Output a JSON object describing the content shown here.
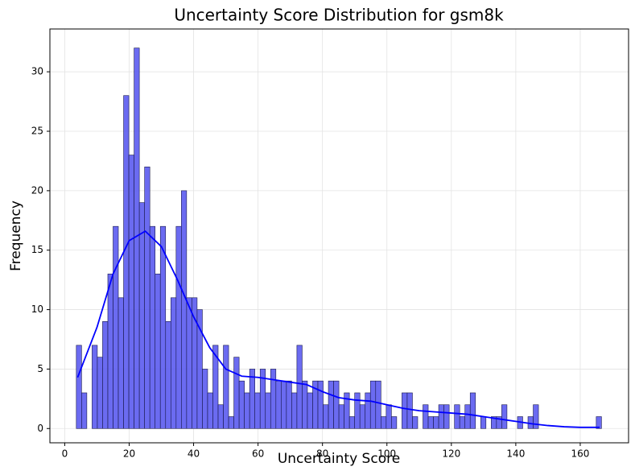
{
  "chart_data": {
    "type": "histogram",
    "title": "Uncertainty Score Distribution for gsm8k",
    "xlabel": "Uncertainty Score",
    "ylabel": "Frequency",
    "bins": [
      3.6,
      5.23,
      6.86,
      8.49,
      10.12,
      11.75,
      13.38,
      15.01,
      16.64,
      18.27,
      19.9,
      21.53,
      23.16,
      24.79,
      26.42,
      28.05,
      29.68,
      31.31,
      32.94,
      34.57,
      36.2,
      37.83,
      39.46,
      41.09,
      42.72,
      44.35,
      45.98,
      47.61,
      49.24,
      50.87,
      52.5,
      54.13,
      55.76,
      57.39,
      59.02,
      60.65,
      62.28,
      63.91,
      65.54,
      67.17,
      68.8,
      70.43,
      72.06,
      73.69,
      75.32,
      76.95,
      78.58,
      80.21,
      81.84,
      83.47,
      85.1,
      86.73,
      88.36,
      89.99,
      91.62,
      93.25,
      94.88,
      96.51,
      98.14,
      99.77,
      101.4,
      103.03,
      104.66,
      106.29,
      107.92,
      109.55,
      111.18,
      112.81,
      114.44,
      116.07,
      117.7,
      119.33,
      120.96,
      122.59,
      124.22,
      125.85,
      127.48,
      129.11,
      130.74,
      132.37,
      134.0,
      135.63,
      137.26,
      138.89,
      140.52,
      142.15,
      143.78,
      145.41,
      147.04,
      148.67,
      150.3,
      151.93,
      153.56,
      155.19,
      156.82,
      158.45,
      160.08,
      161.71,
      163.34,
      164.97,
      166.6
    ],
    "counts": [
      7,
      3,
      0,
      7,
      6,
      9,
      13,
      17,
      11,
      28,
      23,
      32,
      19,
      22,
      17,
      13,
      17,
      9,
      11,
      17,
      20,
      11,
      11,
      10,
      5,
      3,
      7,
      2,
      7,
      1,
      6,
      4,
      3,
      5,
      3,
      5,
      3,
      5,
      4,
      4,
      4,
      3,
      7,
      4,
      3,
      4,
      4,
      2,
      4,
      4,
      2,
      3,
      1,
      3,
      2,
      3,
      4,
      4,
      1,
      2,
      1,
      0,
      3,
      3,
      1,
      0,
      2,
      1,
      1,
      2,
      2,
      0,
      2,
      1,
      2,
      3,
      0,
      1,
      0,
      1,
      1,
      2,
      0,
      0,
      1,
      0,
      1,
      2,
      0,
      0,
      0,
      0,
      0,
      0,
      0,
      0,
      0,
      0,
      0,
      1
    ],
    "color": "#5b5bf0",
    "edgecolor": "#1a1a4d",
    "kde": {
      "color": "#0000ff",
      "x": [
        4,
        10,
        15,
        20,
        25,
        30,
        35,
        40,
        45,
        50,
        55,
        60,
        65,
        70,
        75,
        80,
        85,
        90,
        95,
        100,
        105,
        110,
        115,
        120,
        125,
        130,
        135,
        140,
        145,
        150,
        155,
        160,
        166
      ],
      "y": [
        4.3,
        8.5,
        13,
        15.8,
        16.6,
        15.3,
        12.5,
        9.4,
        6.8,
        5.0,
        4.4,
        4.3,
        4.1,
        3.9,
        3.7,
        3.1,
        2.6,
        2.4,
        2.3,
        2.0,
        1.7,
        1.5,
        1.4,
        1.3,
        1.2,
        1.0,
        0.8,
        0.6,
        0.4,
        0.25,
        0.15,
        0.1,
        0.1
      ]
    },
    "xlim": [
      -4.6,
      175
    ],
    "ylim": [
      -1.2,
      33.6
    ],
    "xticks": [
      0,
      20,
      40,
      60,
      80,
      100,
      120,
      140,
      160
    ],
    "yticks": [
      0,
      5,
      10,
      15,
      20,
      25,
      30
    ],
    "grid": true
  }
}
